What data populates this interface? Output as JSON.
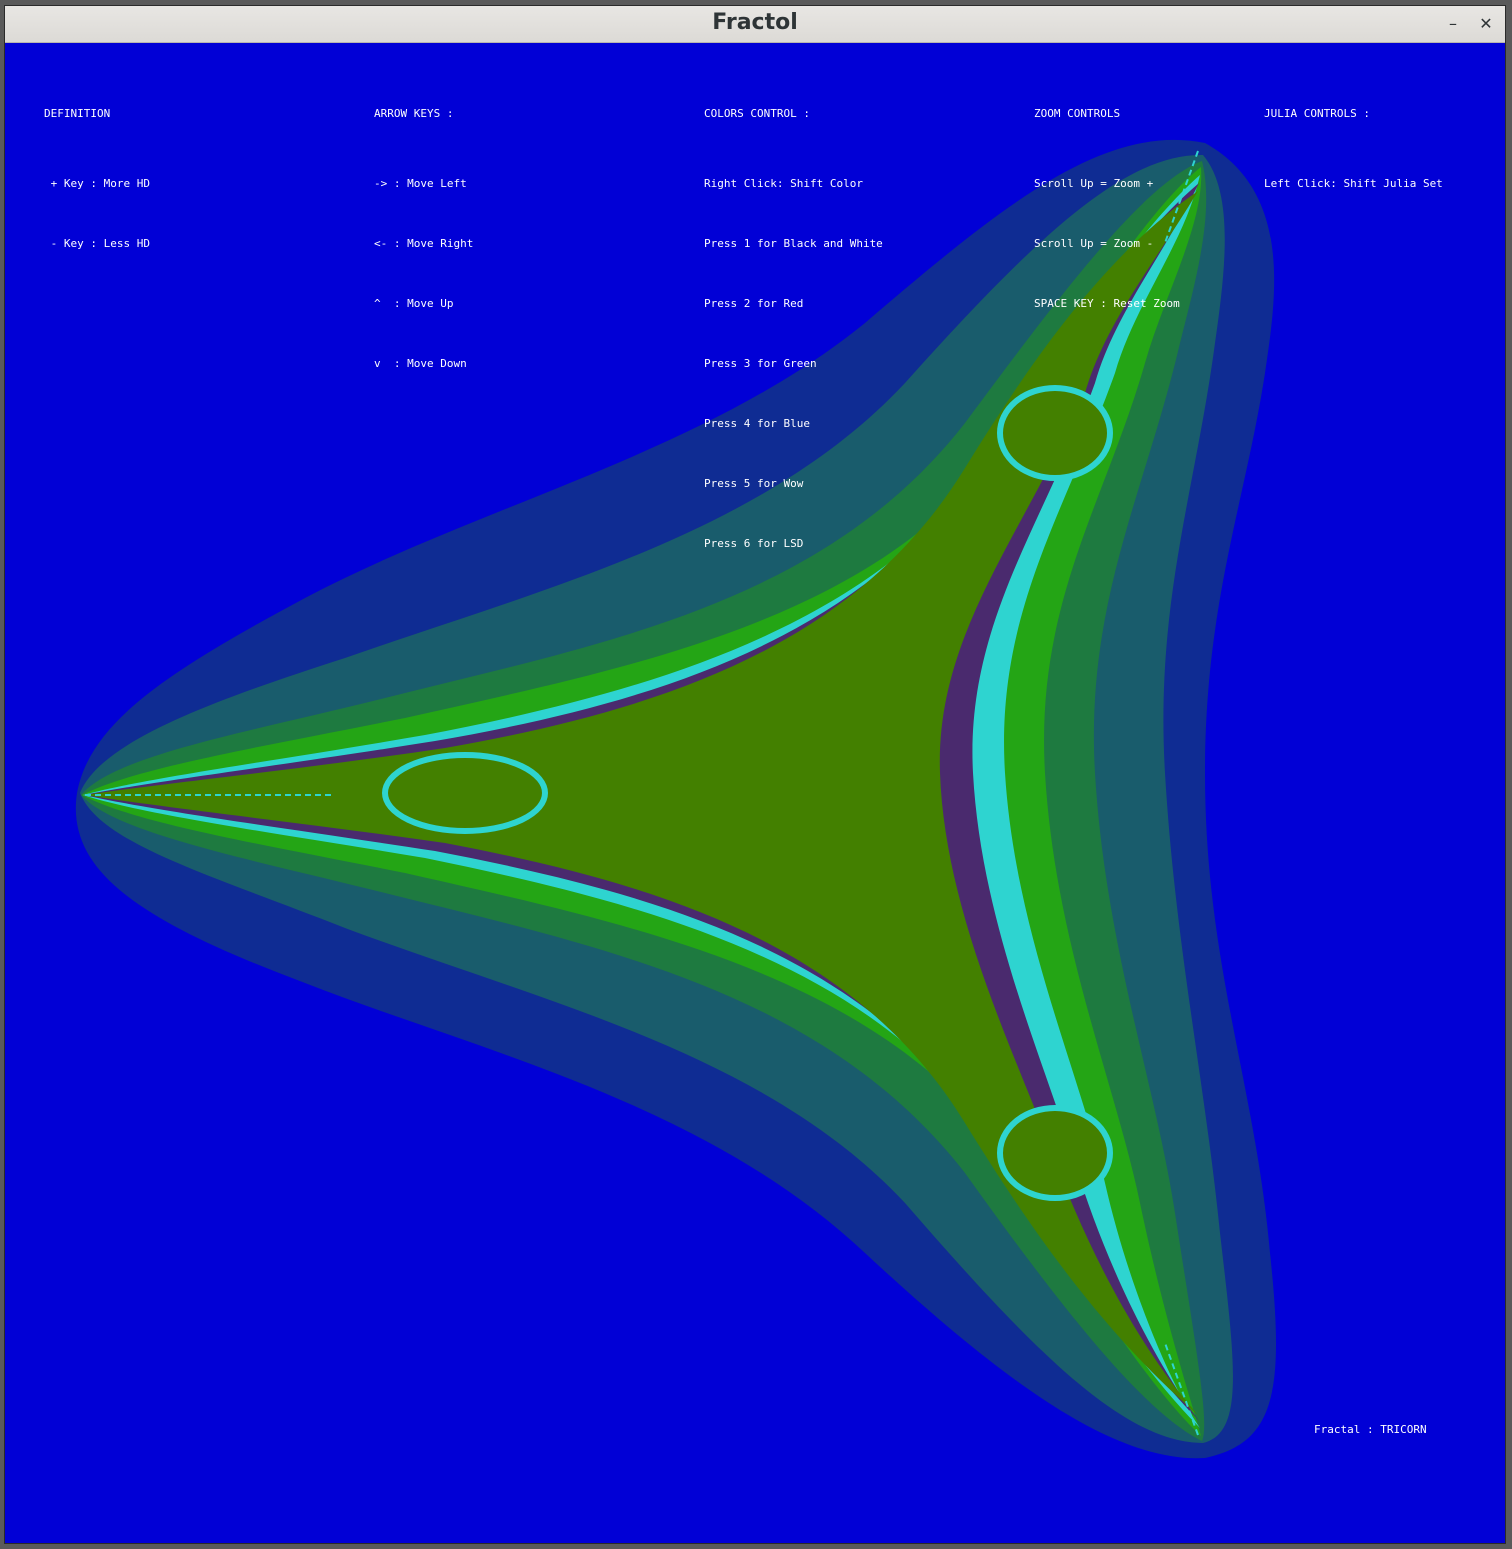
{
  "window": {
    "title": "Fractol",
    "minimize_glyph": "–",
    "close_glyph": "✕"
  },
  "colors": {
    "background": "#0100d6",
    "outer_halo": "#0f2c93",
    "halo_2": "#195c6c",
    "halo_3": "#1e7a40",
    "band_green": "#24a515",
    "band_cyan": "#2ed4d0",
    "band_purple": "#4a2a6e",
    "interior": "#438000"
  },
  "help": {
    "definition": {
      "header": "DEFINITION",
      "lines": [
        " + Key : More HD",
        " - Key : Less HD"
      ]
    },
    "arrow_keys": {
      "header": "ARROW KEYS :",
      "lines": [
        "-> : Move Left",
        "<- : Move Right",
        "^  : Move Up",
        "v  : Move Down"
      ]
    },
    "colors_control": {
      "header": "COLORS CONTROL :",
      "lines": [
        "Right Click: Shift Color",
        "Press 1 for Black and White",
        "Press 2 for Red",
        "Press 3 for Green",
        "Press 4 for Blue",
        "Press 5 for Wow",
        "Press 6 for LSD"
      ]
    },
    "zoom_controls": {
      "header": "ZOOM CONTROLS",
      "lines": [
        "Scroll Up = Zoom +",
        "Scroll Up = Zoom -",
        "SPACE KEY : Reset Zoom"
      ]
    },
    "julia_controls": {
      "header": "JULIA CONTROLS :",
      "lines": [
        "Left Click: Shift Julia Set"
      ]
    }
  },
  "status": {
    "fractal_label": "Fractal : TRICORN"
  }
}
